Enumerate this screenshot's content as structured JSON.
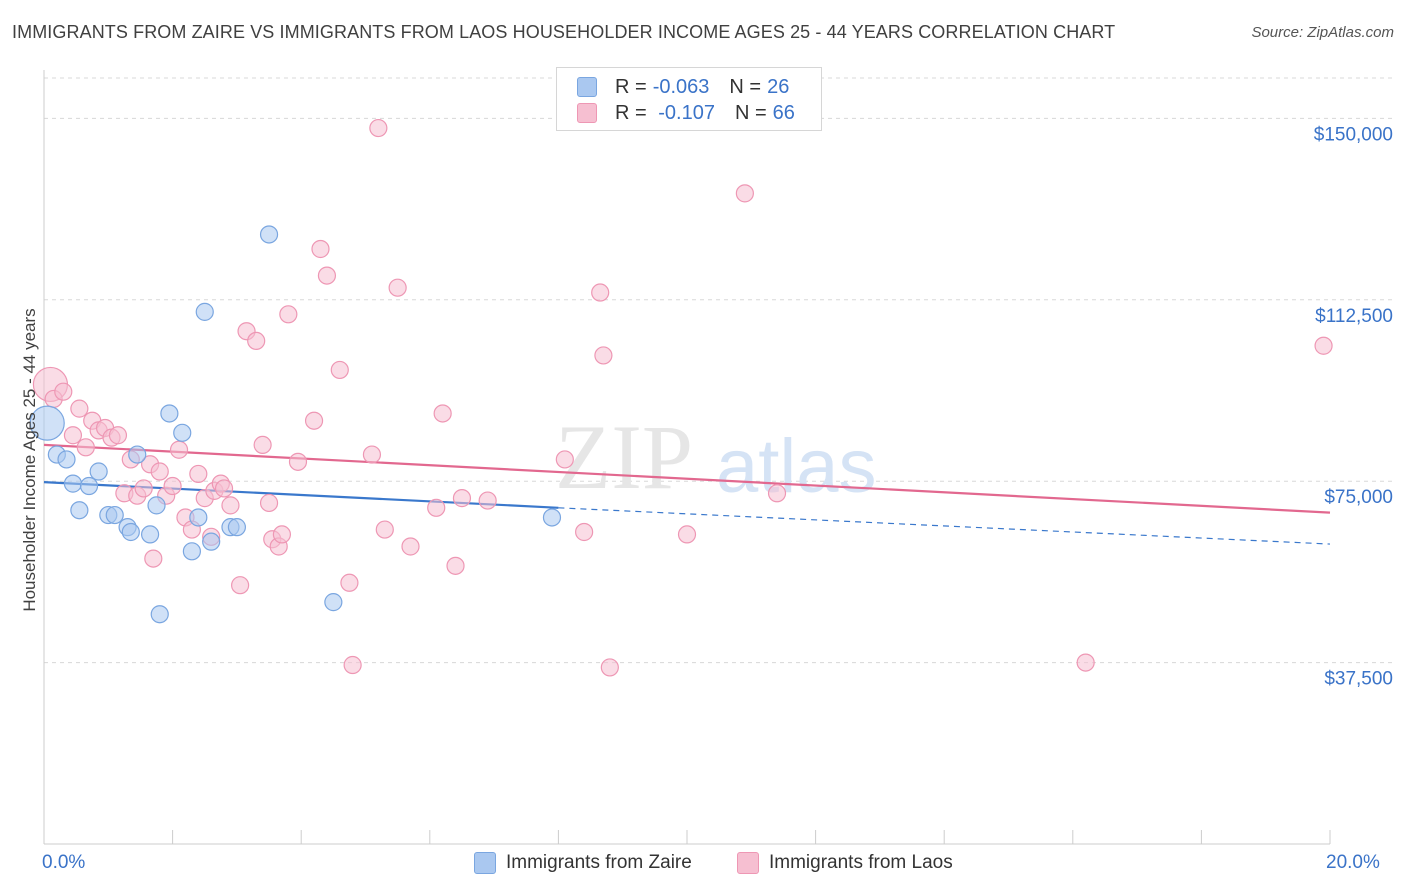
{
  "title": "IMMIGRANTS FROM ZAIRE VS IMMIGRANTS FROM LAOS HOUSEHOLDER INCOME AGES 25 - 44 YEARS CORRELATION CHART",
  "source": "Source: ZipAtlas.com",
  "watermark": {
    "zip": "ZIP",
    "atlas": "atlas"
  },
  "legend": {
    "rows": [
      {
        "r_label": "R = ",
        "r_value": "-0.063",
        "n_label": "N = ",
        "n_value": "26"
      },
      {
        "r_label": "R = ",
        "r_value": " -0.107",
        "n_label": "N = ",
        "n_value": "66"
      }
    ]
  },
  "colors": {
    "zaire_fill": "#aac8f0",
    "zaire_stroke": "#7aa6e0",
    "zaire_line": "#3a78cc",
    "laos_fill": "#f6bfd1",
    "laos_stroke": "#ee97b4",
    "laos_line": "#e2688f",
    "axis_label": "#3a73c8",
    "grid": "#d8d8d8"
  },
  "chart_data": {
    "type": "scatter",
    "title": "IMMIGRANTS FROM ZAIRE VS IMMIGRANTS FROM LAOS HOUSEHOLDER INCOME AGES 25 - 44 YEARS CORRELATION CHART",
    "xlabel": "",
    "ylabel": "Householder Income Ages 25 - 44 years",
    "xlim": [
      0,
      20
    ],
    "ylim": [
      0,
      160000
    ],
    "x_tick_labels": [
      "0.0%",
      "20.0%"
    ],
    "y_ticks": [
      37500,
      75000,
      112500,
      150000
    ],
    "y_tick_labels": [
      "$37,500",
      "$75,000",
      "$112,500",
      "$150,000"
    ],
    "grid": true,
    "legend_position": "top-center",
    "series": [
      {
        "name": "Immigrants from Zaire",
        "r": -0.063,
        "n": 26,
        "trend": {
          "x": [
            0,
            8
          ],
          "y": [
            74800,
            69500
          ],
          "dashed_to": [
            20,
            62000
          ]
        },
        "points": [
          [
            0.05,
            87000,
            "large"
          ],
          [
            0.2,
            80500
          ],
          [
            0.35,
            79500
          ],
          [
            0.45,
            74500
          ],
          [
            0.55,
            69000
          ],
          [
            0.7,
            74000
          ],
          [
            0.85,
            77000
          ],
          [
            1.0,
            68000
          ],
          [
            1.1,
            68000
          ],
          [
            1.3,
            65500
          ],
          [
            1.35,
            64500
          ],
          [
            1.45,
            80500
          ],
          [
            1.65,
            64000
          ],
          [
            1.75,
            70000
          ],
          [
            1.8,
            47500
          ],
          [
            1.95,
            89000
          ],
          [
            2.15,
            85000
          ],
          [
            2.3,
            60500
          ],
          [
            2.4,
            67500
          ],
          [
            2.5,
            110000
          ],
          [
            2.6,
            62500
          ],
          [
            2.9,
            65500
          ],
          [
            3.0,
            65500
          ],
          [
            3.5,
            126000
          ],
          [
            4.5,
            50000
          ],
          [
            7.9,
            67500
          ]
        ]
      },
      {
        "name": "Immigrants from Laos",
        "r": -0.107,
        "n": 66,
        "trend": {
          "x": [
            0,
            20
          ],
          "y": [
            82500,
            68500
          ]
        },
        "points": [
          [
            0.1,
            95000,
            "large"
          ],
          [
            0.15,
            92000
          ],
          [
            0.3,
            93500
          ],
          [
            0.45,
            84500
          ],
          [
            0.55,
            90000
          ],
          [
            0.65,
            82000
          ],
          [
            0.75,
            87500
          ],
          [
            0.85,
            85500
          ],
          [
            0.95,
            86000
          ],
          [
            1.05,
            84000
          ],
          [
            1.15,
            84500
          ],
          [
            1.25,
            72500
          ],
          [
            1.35,
            79500
          ],
          [
            1.45,
            72000
          ],
          [
            1.55,
            73500
          ],
          [
            1.65,
            78500
          ],
          [
            1.7,
            59000
          ],
          [
            1.8,
            77000
          ],
          [
            1.9,
            72000
          ],
          [
            2.0,
            74000
          ],
          [
            2.1,
            81500
          ],
          [
            2.2,
            67500
          ],
          [
            2.3,
            65000
          ],
          [
            2.4,
            76500
          ],
          [
            2.5,
            71500
          ],
          [
            2.6,
            63500
          ],
          [
            2.65,
            73000
          ],
          [
            2.75,
            74500
          ],
          [
            2.8,
            73500
          ],
          [
            2.9,
            70000
          ],
          [
            3.05,
            53500
          ],
          [
            3.15,
            106000
          ],
          [
            3.3,
            104000
          ],
          [
            3.4,
            82500
          ],
          [
            3.5,
            70500
          ],
          [
            3.55,
            63000
          ],
          [
            3.65,
            61500
          ],
          [
            3.7,
            64000
          ],
          [
            3.8,
            109500
          ],
          [
            3.95,
            79000
          ],
          [
            4.2,
            87500
          ],
          [
            4.3,
            123000
          ],
          [
            4.4,
            117500
          ],
          [
            4.6,
            98000
          ],
          [
            4.75,
            54000
          ],
          [
            4.8,
            37000
          ],
          [
            5.1,
            80500
          ],
          [
            5.2,
            148000
          ],
          [
            5.3,
            65000
          ],
          [
            5.5,
            115000
          ],
          [
            5.7,
            61500
          ],
          [
            6.1,
            69500
          ],
          [
            6.2,
            89000
          ],
          [
            6.4,
            57500
          ],
          [
            6.5,
            71500
          ],
          [
            6.9,
            71000
          ],
          [
            8.1,
            79500
          ],
          [
            8.4,
            64500
          ],
          [
            8.65,
            114000
          ],
          [
            8.7,
            101000
          ],
          [
            8.8,
            36500
          ],
          [
            10.0,
            64000
          ],
          [
            10.9,
            134500
          ],
          [
            11.4,
            72500
          ],
          [
            16.2,
            37500
          ],
          [
            19.9,
            103000
          ]
        ]
      }
    ]
  },
  "y_axis_label": "Householder Income Ages 25 - 44 years",
  "x_axis": {
    "min_label": "0.0%",
    "max_label": "20.0%"
  },
  "bottom_legend": {
    "zaire": "Immigrants from Zaire",
    "laos": "Immigrants from Laos"
  }
}
